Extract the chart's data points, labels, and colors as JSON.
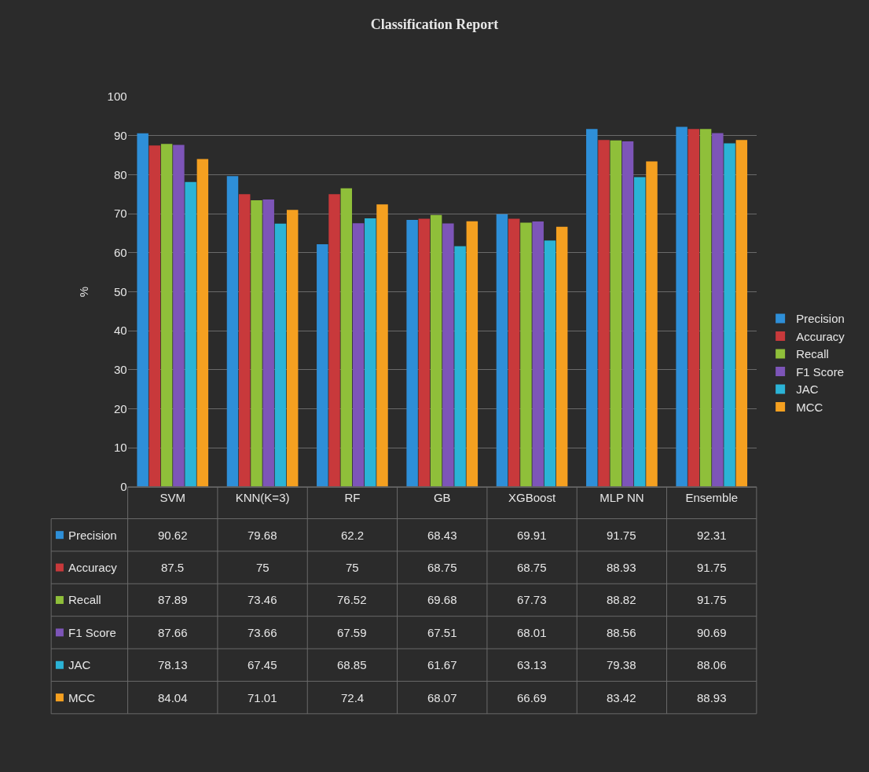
{
  "chart_data": {
    "type": "bar",
    "title": "Classification Report",
    "ylabel": "%",
    "categories": [
      "SVM",
      "KNN(K=3)",
      "RF",
      "GB",
      "XGBoost",
      "MLP NN",
      "Ensemble"
    ],
    "series": [
      {
        "name": "Precision",
        "color": "#2e8fd8",
        "values": [
          90.62,
          79.68,
          62.2,
          68.43,
          69.91,
          91.75,
          92.31
        ]
      },
      {
        "name": "Accuracy",
        "color": "#c8393b",
        "values": [
          87.5,
          75,
          75,
          68.75,
          68.75,
          88.93,
          91.75
        ]
      },
      {
        "name": "Recall",
        "color": "#8fbf3a",
        "values": [
          87.89,
          73.46,
          76.52,
          69.68,
          67.73,
          88.82,
          91.75
        ]
      },
      {
        "name": "F1 Score",
        "color": "#7d55b8",
        "values": [
          87.66,
          73.66,
          67.59,
          67.51,
          68.01,
          88.56,
          90.69
        ]
      },
      {
        "name": "JAC",
        "color": "#2bb3d6",
        "values": [
          78.13,
          67.45,
          68.85,
          61.67,
          63.13,
          79.38,
          88.06
        ]
      },
      {
        "name": "MCC",
        "color": "#f5a020",
        "values": [
          84.04,
          71.01,
          72.4,
          68.07,
          66.69,
          83.42,
          88.93
        ]
      }
    ],
    "ylim": [
      0,
      100
    ],
    "yticks": [
      0,
      10,
      20,
      30,
      40,
      50,
      60,
      70,
      80,
      90,
      100
    ],
    "grid": "y",
    "legend": "right",
    "data_labels": true
  }
}
